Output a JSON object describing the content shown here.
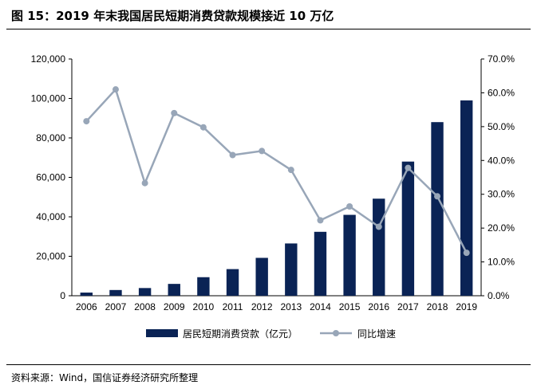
{
  "figure": {
    "title": "图 15：2019 年末我国居民短期消费贷款规模接近 10 万亿",
    "source": "资料来源：Wind，国信证券经济研究所整理"
  },
  "chart_data": {
    "type": "bar",
    "categories": [
      "2006",
      "2007",
      "2008",
      "2009",
      "2010",
      "2011",
      "2012",
      "2013",
      "2014",
      "2015",
      "2016",
      "2017",
      "2018",
      "2019"
    ],
    "series": [
      {
        "name": "居民短期消费贷款（亿元）",
        "type": "bar",
        "axis": "left",
        "color": "#0a2355",
        "values": [
          1600,
          2900,
          3900,
          6000,
          9400,
          13500,
          19200,
          26500,
          32400,
          41000,
          49200,
          68000,
          88000,
          99000
        ]
      },
      {
        "name": "同比增速",
        "type": "line",
        "axis": "right",
        "color": "#98a6b8",
        "values": [
          51.6,
          61.0,
          33.3,
          54.0,
          49.8,
          41.6,
          42.8,
          37.2,
          22.3,
          26.4,
          20.4,
          37.8,
          29.4,
          12.7
        ]
      }
    ],
    "y_left": {
      "ylim": [
        0,
        120000
      ],
      "ticks": [
        "0",
        "20,000",
        "40,000",
        "60,000",
        "80,000",
        "100,000",
        "120,000"
      ]
    },
    "y_right": {
      "ylim": [
        0,
        70
      ],
      "ticks": [
        "0.0%",
        "10.0%",
        "20.0%",
        "30.0%",
        "40.0%",
        "50.0%",
        "60.0%",
        "70.0%"
      ]
    },
    "grid": false,
    "legend_position": "bottom"
  }
}
